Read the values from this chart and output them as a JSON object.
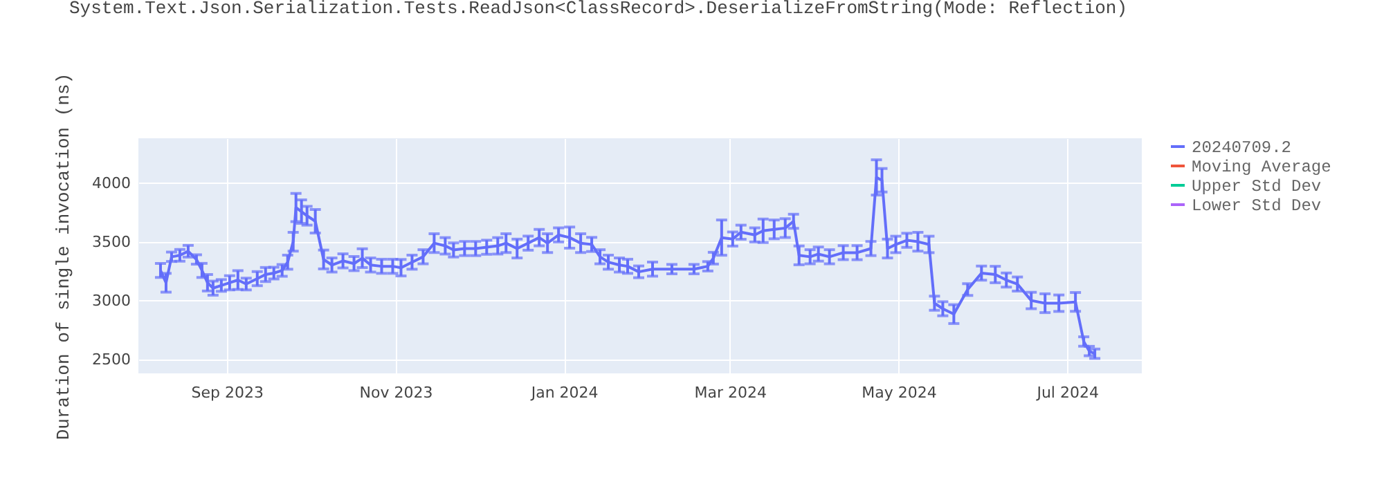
{
  "chart_data": {
    "type": "line",
    "title": "System.Text.Json.Serialization.Tests.ReadJson<ClassRecord>.DeserializeFromString(Mode: Reflection)",
    "ylabel": "Duration of single invocation (ns)",
    "x": [
      "2023-08-08",
      "2023-08-10",
      "2023-08-12",
      "2023-08-15",
      "2023-08-18",
      "2023-08-21",
      "2023-08-23",
      "2023-08-25",
      "2023-08-27",
      "2023-08-30",
      "2023-09-02",
      "2023-09-05",
      "2023-09-08",
      "2023-09-12",
      "2023-09-15",
      "2023-09-18",
      "2023-09-21",
      "2023-09-23",
      "2023-09-25",
      "2023-09-26",
      "2023-09-28",
      "2023-09-30",
      "2023-10-03",
      "2023-10-06",
      "2023-10-09",
      "2023-10-13",
      "2023-10-17",
      "2023-10-20",
      "2023-10-23",
      "2023-10-27",
      "2023-10-31",
      "2023-11-03",
      "2023-11-07",
      "2023-11-11",
      "2023-11-15",
      "2023-11-19",
      "2023-11-22",
      "2023-11-26",
      "2023-11-30",
      "2023-12-04",
      "2023-12-08",
      "2023-12-11",
      "2023-12-15",
      "2023-12-19",
      "2023-12-23",
      "2023-12-26",
      "2023-12-30",
      "2024-01-03",
      "2024-01-07",
      "2024-01-11",
      "2024-01-14",
      "2024-01-17",
      "2024-01-21",
      "2024-01-24",
      "2024-01-28",
      "2024-02-02",
      "2024-02-09",
      "2024-02-17",
      "2024-02-22",
      "2024-02-24",
      "2024-02-27",
      "2024-03-02",
      "2024-03-05",
      "2024-03-10",
      "2024-03-13",
      "2024-03-17",
      "2024-03-21",
      "2024-03-24",
      "2024-03-26",
      "2024-03-30",
      "2024-04-02",
      "2024-04-06",
      "2024-04-11",
      "2024-04-16",
      "2024-04-21",
      "2024-04-23",
      "2024-04-25",
      "2024-04-27",
      "2024-04-30",
      "2024-05-04",
      "2024-05-08",
      "2024-05-12",
      "2024-05-14",
      "2024-05-17",
      "2024-05-21",
      "2024-05-26",
      "2024-05-31",
      "2024-06-05",
      "2024-06-09",
      "2024-06-13",
      "2024-06-18",
      "2024-06-23",
      "2024-06-28",
      "2024-07-04",
      "2024-07-07",
      "2024-07-09",
      "2024-07-11"
    ],
    "series": [
      {
        "name": "20240709.2",
        "color": "#636efa",
        "values": [
          3256,
          3151,
          3372,
          3384,
          3419,
          3349,
          3256,
          3151,
          3105,
          3128,
          3151,
          3174,
          3140,
          3186,
          3221,
          3233,
          3256,
          3326,
          3500,
          3791,
          3756,
          3721,
          3674,
          3349,
          3302,
          3337,
          3314,
          3360,
          3302,
          3291,
          3291,
          3279,
          3326,
          3372,
          3488,
          3465,
          3430,
          3442,
          3442,
          3453,
          3465,
          3488,
          3442,
          3488,
          3535,
          3488,
          3558,
          3535,
          3488,
          3477,
          3372,
          3326,
          3302,
          3291,
          3244,
          3267,
          3267,
          3267,
          3291,
          3360,
          3535,
          3523,
          3581,
          3558,
          3593,
          3605,
          3616,
          3674,
          3384,
          3372,
          3395,
          3372,
          3407,
          3407,
          3442,
          4047,
          4023,
          3442,
          3477,
          3512,
          3500,
          3477,
          2977,
          2930,
          2884,
          3093,
          3233,
          3221,
          3174,
          3140,
          3000,
          2977,
          2977,
          2988,
          2651,
          2570,
          2547
        ],
        "errors": [
          60,
          80,
          40,
          50,
          50,
          40,
          60,
          70,
          60,
          50,
          60,
          80,
          50,
          60,
          60,
          50,
          50,
          60,
          80,
          120,
          100,
          80,
          100,
          80,
          60,
          60,
          60,
          80,
          60,
          60,
          60,
          70,
          60,
          60,
          80,
          70,
          60,
          60,
          60,
          60,
          70,
          80,
          80,
          60,
          70,
          80,
          60,
          90,
          80,
          60,
          60,
          60,
          60,
          60,
          50,
          60,
          40,
          40,
          40,
          50,
          150,
          60,
          60,
          60,
          100,
          80,
          80,
          60,
          80,
          60,
          60,
          60,
          60,
          60,
          60,
          150,
          100,
          80,
          70,
          60,
          80,
          70,
          60,
          60,
          80,
          50,
          60,
          70,
          60,
          60,
          70,
          80,
          70,
          80,
          40,
          40,
          40
        ]
      },
      {
        "name": "Moving Average",
        "color": "#ef553b",
        "values": [
          null,
          null,
          null,
          null,
          null,
          null,
          null,
          null,
          null,
          null,
          null,
          null,
          null,
          null,
          null,
          null,
          null,
          null,
          null,
          null,
          null,
          null,
          null,
          null,
          null,
          null,
          null,
          null,
          null,
          null,
          null,
          null,
          null,
          null,
          null,
          null,
          null,
          null,
          null,
          null,
          null,
          null,
          null,
          null,
          null,
          null,
          null,
          null,
          null,
          null,
          null,
          null,
          null,
          null,
          null,
          null,
          null,
          null,
          null,
          null,
          null,
          null,
          null,
          null,
          null,
          null,
          null,
          null,
          null,
          null,
          null,
          null,
          null,
          null,
          null,
          null,
          null,
          null,
          null,
          null,
          null,
          null,
          null,
          null,
          null,
          null,
          null,
          null,
          null,
          null,
          null,
          null,
          null,
          null,
          null,
          null,
          null
        ]
      },
      {
        "name": "Upper Std Dev",
        "color": "#00cc96",
        "values": [
          null,
          null,
          null,
          null,
          null,
          null,
          null,
          null,
          null,
          null,
          null,
          null,
          null,
          null,
          null,
          null,
          null,
          null,
          null,
          null,
          null,
          null,
          null,
          null,
          null,
          null,
          null,
          null,
          null,
          null,
          null,
          null,
          null,
          null,
          null,
          null,
          null,
          null,
          null,
          null,
          null,
          null,
          null,
          null,
          null,
          null,
          null,
          null,
          null,
          null,
          null,
          null,
          null,
          null,
          null,
          null,
          null,
          null,
          null,
          null,
          null,
          null,
          null,
          null,
          null,
          null,
          null,
          null,
          null,
          null,
          null,
          null,
          null,
          null,
          null,
          null,
          null,
          null,
          null,
          null,
          null,
          null,
          null,
          null,
          null,
          null,
          null,
          null,
          null,
          null,
          null,
          null,
          null,
          null,
          null,
          null,
          null
        ]
      },
      {
        "name": "Lower Std Dev",
        "color": "#ab63fa",
        "values": [
          null,
          null,
          null,
          null,
          null,
          null,
          null,
          null,
          null,
          null,
          null,
          null,
          null,
          null,
          null,
          null,
          null,
          null,
          null,
          null,
          null,
          null,
          null,
          null,
          null,
          null,
          null,
          null,
          null,
          null,
          null,
          null,
          null,
          null,
          null,
          null,
          null,
          null,
          null,
          null,
          null,
          null,
          null,
          null,
          null,
          null,
          null,
          null,
          null,
          null,
          null,
          null,
          null,
          null,
          null,
          null,
          null,
          null,
          null,
          null,
          null,
          null,
          null,
          null,
          null,
          null,
          null,
          null,
          null,
          null,
          null,
          null,
          null,
          null,
          null,
          null,
          null,
          null,
          null,
          null,
          null,
          null,
          null,
          null,
          null,
          null,
          null,
          null,
          null,
          null,
          null,
          null,
          null,
          null,
          null,
          null,
          null
        ]
      }
    ],
    "xlim": [
      "2023-07-31",
      "2024-07-28"
    ],
    "xticks": [
      {
        "value": "2023-09-01",
        "label": "Sep 2023"
      },
      {
        "value": "2023-11-01",
        "label": "Nov 2023"
      },
      {
        "value": "2024-01-01",
        "label": "Jan 2024"
      },
      {
        "value": "2024-03-01",
        "label": "Mar 2024"
      },
      {
        "value": "2024-05-01",
        "label": "May 2024"
      },
      {
        "value": "2024-07-01",
        "label": "Jul 2024"
      }
    ],
    "ylim": [
      2380,
      4380
    ],
    "yticks": [
      2500,
      3000,
      3500,
      4000
    ],
    "grid": true,
    "legend": "top right",
    "line_style": "solid"
  }
}
